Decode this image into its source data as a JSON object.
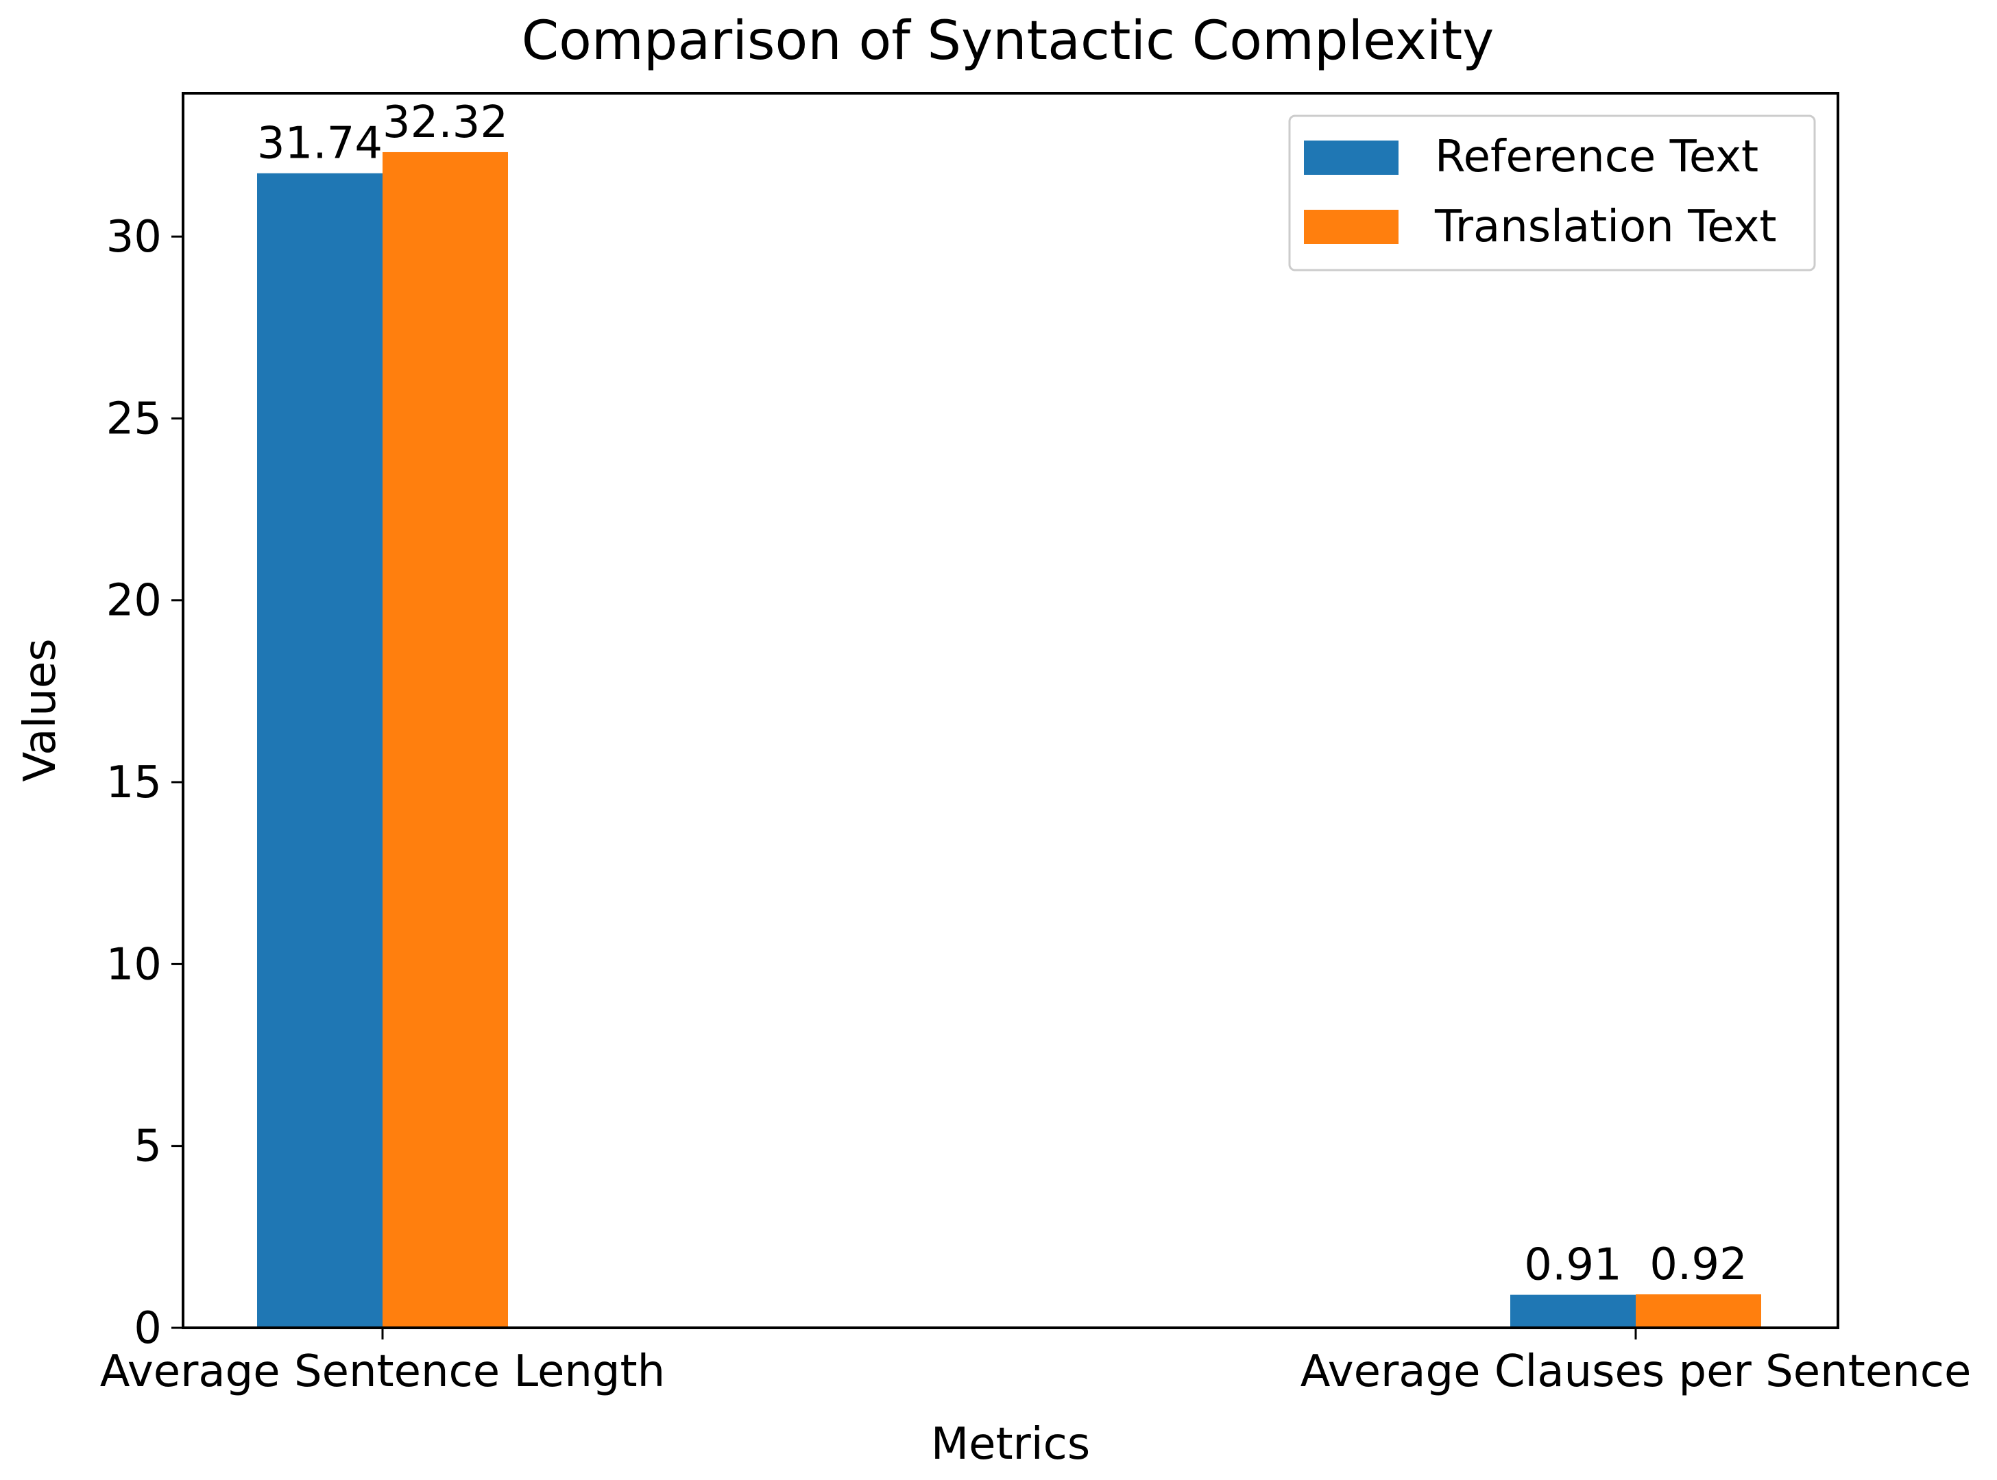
{
  "chart_data": {
    "type": "bar",
    "title": "Comparison of Syntactic Complexity",
    "xlabel": "Metrics",
    "ylabel": "Values",
    "categories": [
      "Average Sentence Length",
      "Average Clauses per Sentence"
    ],
    "series": [
      {
        "name": "Reference Text",
        "color": "#1f77b4",
        "values": [
          31.74,
          0.91
        ],
        "labels": [
          "31.74",
          "0.91"
        ]
      },
      {
        "name": "Translation Text",
        "color": "#ff7f0e",
        "values": [
          32.32,
          0.92
        ],
        "labels": [
          "32.32",
          "0.92"
        ]
      }
    ],
    "yticks": [
      0,
      5,
      10,
      15,
      20,
      25,
      30
    ],
    "ylim": [
      0,
      33.94
    ],
    "grid": false,
    "legend_position": "top-right"
  }
}
